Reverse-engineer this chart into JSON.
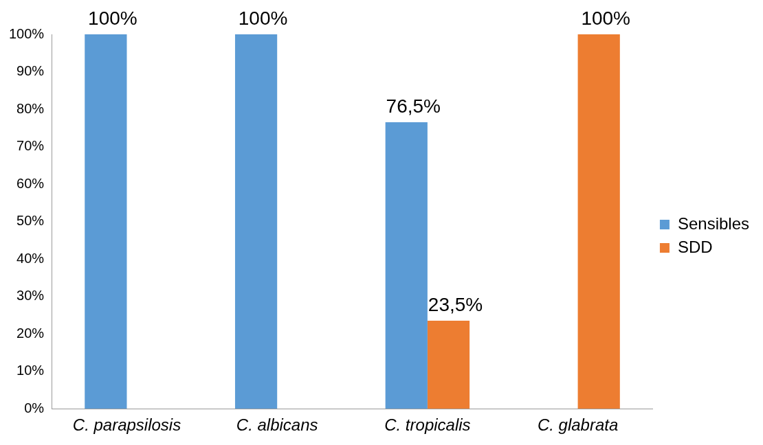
{
  "chart_data": {
    "type": "bar",
    "categories": [
      "C. parapsilosis",
      "C. albicans",
      "C. tropicalis",
      "C. glabrata"
    ],
    "series": [
      {
        "name": "Sensibles",
        "color": "#5b9bd5",
        "values": [
          100,
          100,
          76.5,
          null
        ],
        "value_labels": [
          "100%",
          "100%",
          "76,5%",
          null
        ]
      },
      {
        "name": "SDD",
        "color": "#ed7d31",
        "values": [
          null,
          null,
          23.5,
          100
        ],
        "value_labels": [
          null,
          null,
          "23,5%",
          "100%"
        ]
      }
    ],
    "ylim": [
      0,
      100
    ],
    "yticks": [
      {
        "value": 0,
        "label": "0%"
      },
      {
        "value": 10,
        "label": "10%"
      },
      {
        "value": 20,
        "label": "20%"
      },
      {
        "value": 30,
        "label": "30%"
      },
      {
        "value": 40,
        "label": "40%"
      },
      {
        "value": 50,
        "label": "50%"
      },
      {
        "value": 60,
        "label": "60%"
      },
      {
        "value": 70,
        "label": "70%"
      },
      {
        "value": 80,
        "label": "80%"
      },
      {
        "value": 90,
        "label": "90%"
      },
      {
        "value": 100,
        "label": "100%"
      }
    ],
    "grid": false,
    "legend": "right"
  }
}
